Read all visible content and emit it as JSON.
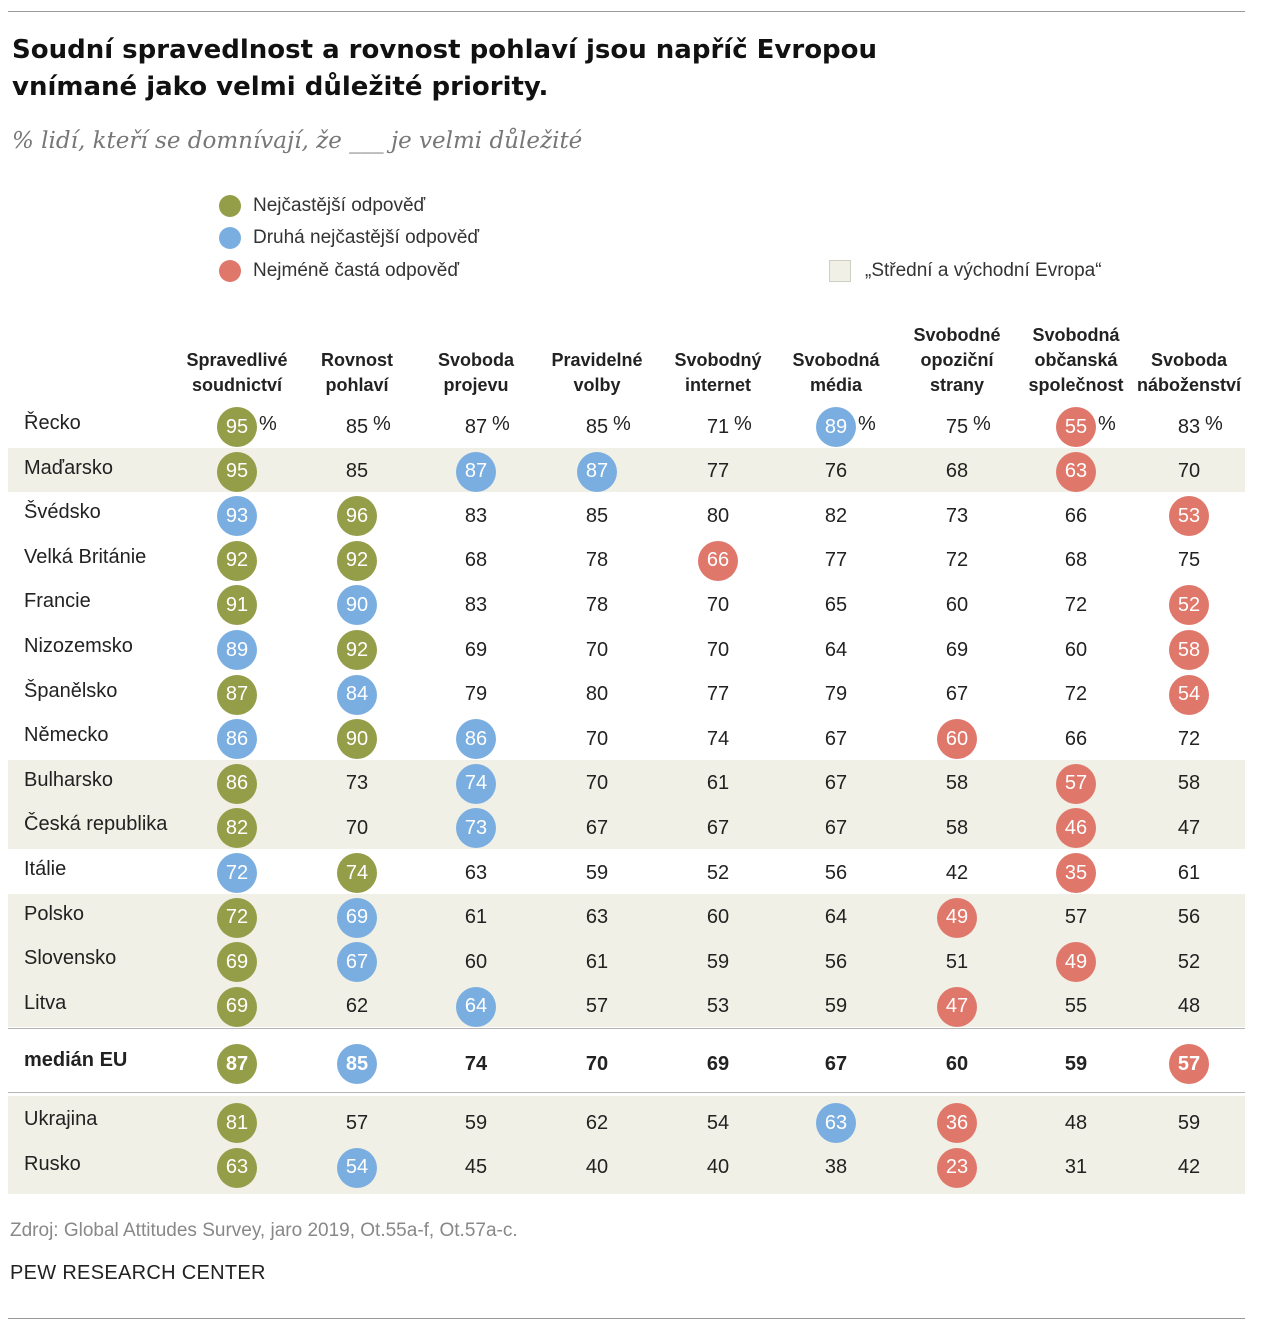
{
  "title": "Soudní spravedlnost a rovnost pohlaví jsou napříč Evropou vnímané jako velmi důležité priority.",
  "subtitle": "% lidí, kteří se domnívají, že ___ je velmi důležité",
  "legend": {
    "top": "Nejčastější odpověď",
    "second": "Druhá nejčastější odpověď",
    "least": "Nejméně častá odpověď",
    "region": "„Střední a východní Evropa“"
  },
  "colors": {
    "top": "#949d48",
    "second": "#7aaee0",
    "least": "#e0776b",
    "region_shade": "#f0f0e6"
  },
  "chart_data": {
    "type": "table",
    "columns": [
      "Spravedlivé\nsoudnictví",
      "Rovnost\npohlaví",
      "Svoboda\nprojevu",
      "Pravidelné\nvolby",
      "Svobodný\ninternet",
      "Svobodná\nmédia",
      "Svobodné\nopoziční\nstrany",
      "Svobodná\nobčanská\nspolečnost",
      "Svoboda\nnáboženství"
    ],
    "unit": "%",
    "rows": [
      {
        "country": "Řecko",
        "region": false,
        "values": [
          95,
          85,
          87,
          85,
          71,
          89,
          75,
          55,
          83
        ],
        "marks": [
          "top",
          "",
          "",
          "",
          "",
          "second",
          "",
          "least",
          ""
        ]
      },
      {
        "country": "Maďarsko",
        "region": true,
        "values": [
          95,
          85,
          87,
          87,
          77,
          76,
          68,
          63,
          70
        ],
        "marks": [
          "top",
          "",
          "second",
          "second",
          "",
          "",
          "",
          "least",
          ""
        ]
      },
      {
        "country": "Švédsko",
        "region": false,
        "values": [
          93,
          96,
          83,
          85,
          80,
          82,
          73,
          66,
          53
        ],
        "marks": [
          "second",
          "top",
          "",
          "",
          "",
          "",
          "",
          "",
          "least"
        ]
      },
      {
        "country": "Velká Británie",
        "region": false,
        "values": [
          92,
          92,
          68,
          78,
          66,
          77,
          72,
          68,
          75
        ],
        "marks": [
          "top",
          "top",
          "",
          "",
          "least",
          "",
          "",
          "",
          ""
        ]
      },
      {
        "country": "Francie",
        "region": false,
        "values": [
          91,
          90,
          83,
          78,
          70,
          65,
          60,
          72,
          52
        ],
        "marks": [
          "top",
          "second",
          "",
          "",
          "",
          "",
          "",
          "",
          "least"
        ]
      },
      {
        "country": "Nizozemsko",
        "region": false,
        "values": [
          89,
          92,
          69,
          70,
          70,
          64,
          69,
          60,
          58
        ],
        "marks": [
          "second",
          "top",
          "",
          "",
          "",
          "",
          "",
          "",
          "least"
        ]
      },
      {
        "country": "Španělsko",
        "region": false,
        "values": [
          87,
          84,
          79,
          80,
          77,
          79,
          67,
          72,
          54
        ],
        "marks": [
          "top",
          "second",
          "",
          "",
          "",
          "",
          "",
          "",
          "least"
        ]
      },
      {
        "country": "Německo",
        "region": false,
        "values": [
          86,
          90,
          86,
          70,
          74,
          67,
          60,
          66,
          72
        ],
        "marks": [
          "second",
          "top",
          "second",
          "",
          "",
          "",
          "least",
          "",
          ""
        ]
      },
      {
        "country": "Bulharsko",
        "region": true,
        "values": [
          86,
          73,
          74,
          70,
          61,
          67,
          58,
          57,
          58
        ],
        "marks": [
          "top",
          "",
          "second",
          "",
          "",
          "",
          "",
          "least",
          ""
        ]
      },
      {
        "country": "Česká republika",
        "region": true,
        "values": [
          82,
          70,
          73,
          67,
          67,
          67,
          58,
          46,
          47
        ],
        "marks": [
          "top",
          "",
          "second",
          "",
          "",
          "",
          "",
          "least",
          ""
        ]
      },
      {
        "country": "Itálie",
        "region": false,
        "values": [
          72,
          74,
          63,
          59,
          52,
          56,
          42,
          35,
          61
        ],
        "marks": [
          "second",
          "top",
          "",
          "",
          "",
          "",
          "",
          "least",
          ""
        ]
      },
      {
        "country": "Polsko",
        "region": true,
        "values": [
          72,
          69,
          61,
          63,
          60,
          64,
          49,
          57,
          56
        ],
        "marks": [
          "top",
          "second",
          "",
          "",
          "",
          "",
          "least",
          "",
          ""
        ]
      },
      {
        "country": "Slovensko",
        "region": true,
        "values": [
          69,
          67,
          60,
          61,
          59,
          56,
          51,
          49,
          52
        ],
        "marks": [
          "top",
          "second",
          "",
          "",
          "",
          "",
          "",
          "least",
          ""
        ]
      },
      {
        "country": "Litva",
        "region": true,
        "values": [
          69,
          62,
          64,
          57,
          53,
          59,
          47,
          55,
          48
        ],
        "marks": [
          "top",
          "",
          "second",
          "",
          "",
          "",
          "least",
          "",
          ""
        ]
      }
    ],
    "median": {
      "label": "medián EU",
      "values": [
        87,
        85,
        74,
        70,
        69,
        67,
        60,
        59,
        57
      ],
      "marks": [
        "top",
        "second",
        "",
        "",
        "",
        "",
        "",
        "",
        "least"
      ]
    },
    "extra_rows": [
      {
        "country": "Ukrajina",
        "region": true,
        "values": [
          81,
          57,
          59,
          62,
          54,
          63,
          36,
          48,
          59
        ],
        "marks": [
          "top",
          "",
          "",
          "",
          "",
          "second",
          "least",
          "",
          ""
        ]
      },
      {
        "country": "Rusko",
        "region": true,
        "values": [
          63,
          54,
          45,
          40,
          40,
          38,
          23,
          31,
          42
        ],
        "marks": [
          "top",
          "second",
          "",
          "",
          "",
          "",
          "least",
          "",
          ""
        ]
      }
    ]
  },
  "source": "Zdroj: Global Attitudes Survey, jaro 2019, Ot.55a-f, Ot.57a-c.",
  "organization": "PEW RESEARCH CENTER"
}
